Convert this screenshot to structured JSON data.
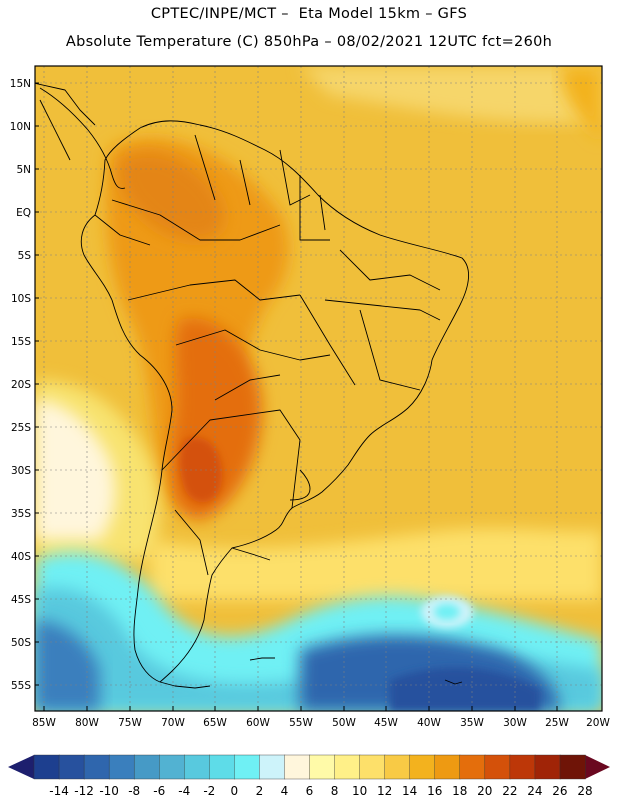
{
  "header": {
    "line1": "CPTEC/INPE/MCT –  Eta Model 15km – GFS",
    "line2": "Absolute Temperature (C) 850hPa – 08/02/2021 12UTC fct=260h"
  },
  "axes": {
    "lat_labels": [
      "15N",
      "10N",
      "5N",
      "EQ",
      "5S",
      "10S",
      "15S",
      "20S",
      "25S",
      "30S",
      "35S",
      "40S",
      "45S",
      "50S",
      "55S"
    ],
    "lon_labels": [
      "85W",
      "80W",
      "75W",
      "70W",
      "65W",
      "60W",
      "55W",
      "50W",
      "45W",
      "40W",
      "35W",
      "30W",
      "25W",
      "20W"
    ]
  },
  "colorbar": {
    "labels": [
      "-14",
      "-12",
      "-10",
      "-8",
      "-6",
      "-4",
      "-2",
      "0",
      "2",
      "4",
      "6",
      "8",
      "10",
      "12",
      "14",
      "16",
      "18",
      "20",
      "22",
      "24",
      "26",
      "28"
    ],
    "colors": [
      "#1d3f8f",
      "#27519e",
      "#2f66ad",
      "#3a7fbd",
      "#469ac6",
      "#52b2d2",
      "#58c9de",
      "#5edce8",
      "#6ff0f4",
      "#cdf3fa",
      "#fff6dc",
      "#fffaa8",
      "#fff088",
      "#fde06a",
      "#f8ca45",
      "#f3b21e",
      "#ee9a12",
      "#e46e0c",
      "#d4510a",
      "#bd3708",
      "#a02407",
      "#6f1407"
    ],
    "left_arrow_color": "#1d1f6e",
    "right_arrow_color": "#6a0820"
  },
  "map": {
    "ocean_base": "#f0bf3a",
    "frame_color": "#000000"
  }
}
